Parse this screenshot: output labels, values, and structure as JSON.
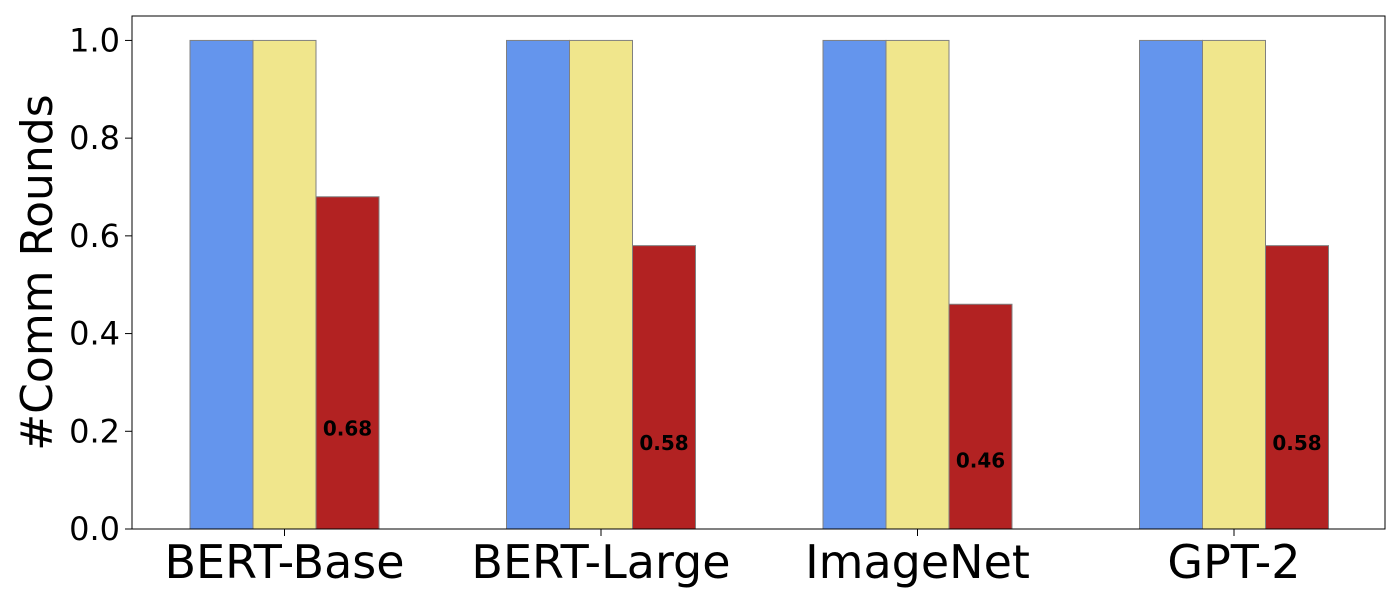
{
  "chart_data": {
    "type": "bar",
    "categories": [
      "BERT-Base",
      "BERT-Large",
      "ImageNet",
      "GPT-2"
    ],
    "series": [
      {
        "values": [
          1.0,
          1.0,
          1.0,
          1.0
        ],
        "color": "#6495ED"
      },
      {
        "values": [
          1.0,
          1.0,
          1.0,
          1.0
        ],
        "color": "#F0E68C"
      },
      {
        "values": [
          0.68,
          0.58,
          0.46,
          0.58
        ],
        "color": "#B22222"
      }
    ],
    "data_labels": [
      "0.68",
      "0.58",
      "0.46",
      "0.58"
    ],
    "title": "",
    "xlabel": "",
    "ylabel": "#Comm Rounds",
    "ylim": [
      0,
      1.05
    ],
    "yticks": [
      "0.0",
      "0.2",
      "0.4",
      "0.6",
      "0.8",
      "1.0"
    ],
    "grid": false,
    "bar_edge_color": "#808080"
  }
}
